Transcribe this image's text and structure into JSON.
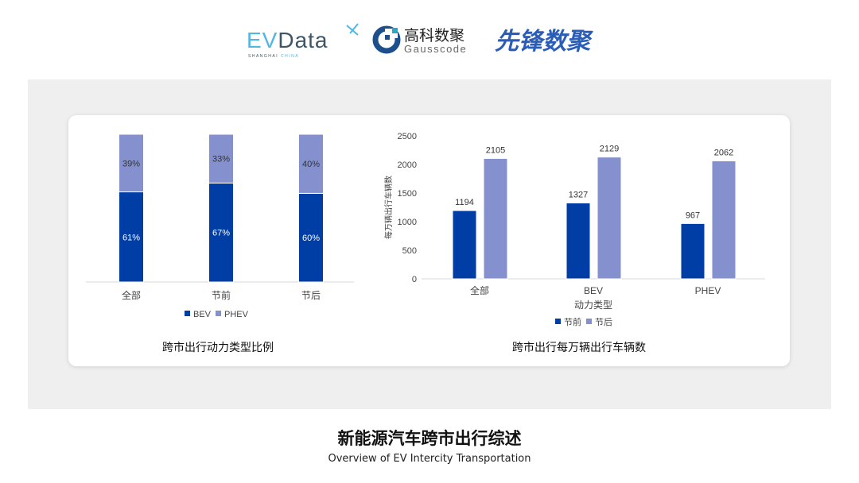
{
  "logos": {
    "evdata": "EVData",
    "evdata_sub": "SHANGHAI CHINA",
    "gauss_cn": "高科数聚",
    "gauss_en": "Gausscode",
    "xianfeng": "先锋数聚"
  },
  "footer": {
    "title": "新能源汽车跨市出行综述",
    "subtitle": "Overview of EV Intercity Transportation"
  },
  "colors": {
    "dark": "#003DA5",
    "light": "#8591CE"
  },
  "chart_data": [
    {
      "type": "bar",
      "stacked": true,
      "title": "跨市出行动力类型比例",
      "categories": [
        "全部",
        "节前",
        "节后"
      ],
      "series": [
        {
          "name": "BEV",
          "values": [
            61,
            67,
            60
          ],
          "labels": [
            "61%",
            "67%",
            "60%"
          ]
        },
        {
          "name": "PHEV",
          "values": [
            39,
            33,
            40
          ],
          "labels": [
            "39%",
            "33%",
            "40%"
          ]
        }
      ],
      "ylim": [
        0,
        100
      ],
      "legend": "bottom",
      "grid": false
    },
    {
      "type": "bar",
      "title": "跨市出行每万辆出行车辆数",
      "xlabel": "动力类型",
      "ylabel": "每万辆出行车辆数",
      "categories": [
        "全部",
        "BEV",
        "PHEV"
      ],
      "series": [
        {
          "name": "节前",
          "values": [
            1194,
            1327,
            967
          ]
        },
        {
          "name": "节后",
          "values": [
            2105,
            2129,
            2062
          ]
        }
      ],
      "ylim": [
        0,
        2500
      ],
      "yticks": [
        0,
        500,
        1000,
        1500,
        2000,
        2500
      ],
      "legend": "bottom",
      "grid": false
    }
  ]
}
